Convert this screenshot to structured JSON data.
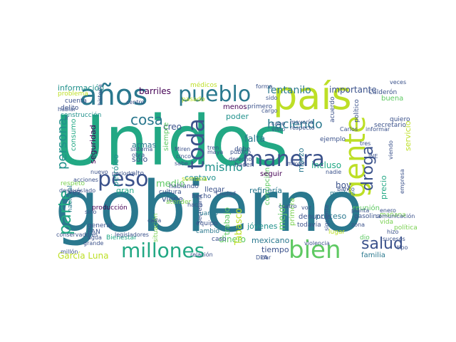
{
  "palette": [
    "#440154",
    "#3b528b",
    "#2a788e",
    "#21918c",
    "#22a884",
    "#5ec962",
    "#7ad151",
    "#bddf26",
    "#fde725"
  ],
  "words": [
    {
      "text": "Unidos",
      "c": 4
    },
    {
      "text": "gobierno",
      "c": 2
    },
    {
      "text": "país",
      "c": 7
    },
    {
      "text": "años",
      "c": 2
    },
    {
      "text": "pueblo",
      "c": 2
    },
    {
      "text": "gente",
      "c": 7
    },
    {
      "text": "bien",
      "c": 5
    },
    {
      "text": "millones",
      "c": 4
    },
    {
      "text": "manera",
      "c": 1
    },
    {
      "text": "peso",
      "c": 1
    },
    {
      "text": "toda",
      "c": 1
    },
    {
      "text": "cosa",
      "c": 2
    },
    {
      "text": "droga",
      "c": 1
    },
    {
      "text": "salud",
      "c": 1
    },
    {
      "text": "parte",
      "c": 4
    },
    {
      "text": "persona",
      "c": 3
    },
    {
      "text": "haciendo",
      "c": 2
    },
    {
      "text": "mismo",
      "c": 3
    },
    {
      "text": "fentanilo",
      "c": 2
    },
    {
      "text": "importante",
      "c": 1
    },
    {
      "text": "información",
      "c": 3
    },
    {
      "text": "barriles",
      "c": 0
    },
    {
      "text": "creo",
      "c": 1
    },
    {
      "text": "falta",
      "c": 2
    },
    {
      "text": "poder",
      "c": 3
    },
    {
      "text": "incluso",
      "c": 4
    },
    {
      "text": "hoy",
      "c": 1
    },
    {
      "text": "mejor",
      "c": 5
    },
    {
      "text": "dinero",
      "c": 5
    },
    {
      "text": "tiempo",
      "c": 1
    },
    {
      "text": "García Luna",
      "c": 7
    },
    {
      "text": "refinería",
      "c": 2
    },
    {
      "text": "centavo",
      "c": 3
    },
    {
      "text": "medio",
      "c": 5
    },
    {
      "text": "viene",
      "c": 1
    },
    {
      "text": "trabajo",
      "c": 5
    },
    {
      "text": "Tabasco",
      "c": 7
    },
    {
      "text": "mexicano",
      "c": 2
    },
    {
      "text": "proceso",
      "c": 2
    },
    {
      "text": "precio",
      "c": 4
    },
    {
      "text": "servicio",
      "c": 7
    },
    {
      "text": "buena",
      "c": 5
    },
    {
      "text": "corrupción",
      "c": 5
    },
    {
      "text": "marzo",
      "c": 2
    },
    {
      "text": "jóvenes",
      "c": 3
    },
    {
      "text": "familia",
      "c": 2
    },
    {
      "text": "seguridad",
      "c": 0
    },
    {
      "text": "consumo",
      "c": 4
    },
    {
      "text": "petróleo",
      "c": 3
    },
    {
      "text": "gran",
      "c": 4
    },
    {
      "text": "vez",
      "c": 1
    },
    {
      "text": "sólo",
      "c": 1
    },
    {
      "text": "armas",
      "c": 2
    },
    {
      "text": "siempre",
      "c": 5
    },
    {
      "text": "producción",
      "c": 0
    },
    {
      "text": "menos",
      "c": 0
    },
    {
      "text": "primero",
      "c": 1
    },
    {
      "text": "reunión",
      "c": 5
    },
    {
      "text": "seguir",
      "c": 0
    },
    {
      "text": "hecho",
      "c": 1
    },
    {
      "text": "cuanto",
      "c": 2
    },
    {
      "text": "equipo",
      "c": 1
    },
    {
      "text": "cambio",
      "c": 2
    },
    {
      "text": "llegar",
      "c": 1
    },
    {
      "text": "primera",
      "c": 6
    },
    {
      "text": "denuncia",
      "c": 1
    },
    {
      "text": "muchas",
      "c": 2
    },
    {
      "text": "todavía",
      "c": 1
    },
    {
      "text": "lugar",
      "c": 7
    },
    {
      "text": "gasolina",
      "c": 1
    },
    {
      "text": "respeto",
      "c": 6
    },
    {
      "text": "construcción",
      "c": 3
    },
    {
      "text": "problema",
      "c": 7
    },
    {
      "text": "cuenta",
      "c": 1
    },
    {
      "text": "delito",
      "c": 1
    },
    {
      "text": "nacional",
      "c": 2
    },
    {
      "text": "alto",
      "c": 1
    },
    {
      "text": "Bienestar",
      "c": 4
    },
    {
      "text": "general",
      "c": 1
    },
    {
      "text": "PAN",
      "c": 1
    },
    {
      "text": "cultura",
      "c": 1
    },
    {
      "text": "quiero",
      "c": 1
    },
    {
      "text": "Calderón",
      "c": 1
    },
    {
      "text": "político",
      "c": 1
    },
    {
      "text": "acuerdo",
      "c": 1
    },
    {
      "text": "ejemplo",
      "c": 1
    },
    {
      "text": "secretario",
      "c": 1
    },
    {
      "text": "mañana",
      "c": 6
    },
    {
      "text": "vida",
      "c": 6
    },
    {
      "text": "política",
      "c": 6
    },
    {
      "text": "caso",
      "c": 1
    },
    {
      "text": "dio",
      "c": 5
    },
    {
      "text": "hablando",
      "c": 1
    },
    {
      "text": "atender",
      "c": 6
    },
    {
      "text": "situación",
      "c": 6
    },
    {
      "text": "médicos",
      "c": 7
    },
    {
      "text": "pasado",
      "c": 7
    },
    {
      "text": "semana",
      "c": 7
    },
    {
      "text": "hacen",
      "c": 1
    },
    {
      "text": "debe",
      "c": 1
    },
    {
      "text": "derecho",
      "c": 1
    },
    {
      "text": "Ciudad",
      "c": 1
    },
    {
      "text": "cuatro",
      "c": 1
    },
    {
      "text": "zona",
      "c": 1
    },
    {
      "text": "planta",
      "c": 1
    },
    {
      "text": "Banco",
      "c": 1
    },
    {
      "text": "voz",
      "c": 1
    },
    {
      "text": "cabo",
      "c": 1
    },
    {
      "text": "visto",
      "c": 1
    },
    {
      "text": "sino",
      "c": 1
    },
    {
      "text": "agua",
      "c": 1
    },
    {
      "text": "grande",
      "c": 1
    },
    {
      "text": "millón",
      "c": 1
    },
    {
      "text": "acciones",
      "c": 1
    },
    {
      "text": "después",
      "c": 1
    },
    {
      "text": "periodo",
      "c": 1
    },
    {
      "text": "sistema",
      "c": 1
    },
    {
      "text": "obra",
      "c": 1
    },
    {
      "text": "Miren",
      "c": 1
    },
    {
      "text": "maya",
      "c": 1
    },
    {
      "text": "tren",
      "c": 1
    },
    {
      "text": "cinco",
      "c": 1
    },
    {
      "text": "sabe",
      "c": 1
    },
    {
      "text": "público",
      "c": 1
    },
    {
      "text": "DEA",
      "c": 1
    },
    {
      "text": "nadie",
      "c": 1
    },
    {
      "text": "INE",
      "c": 1
    },
    {
      "text": "Carlos",
      "c": 1
    },
    {
      "text": "sido",
      "c": 1
    },
    {
      "text": "forma",
      "c": 1
    },
    {
      "text": "veces",
      "c": 1
    },
    {
      "text": "tipo",
      "c": 1
    },
    {
      "text": "enero",
      "c": 1
    },
    {
      "text": "lado",
      "c": 1
    },
    {
      "text": "legisladores",
      "c": 1
    },
    {
      "text": "conservadores",
      "c": 1
    },
    {
      "text": "historia",
      "c": 1
    },
    {
      "text": "cargo",
      "c": 1
    },
    {
      "text": "Secretaría",
      "c": 1
    },
    {
      "text": "mayoría",
      "c": 1
    },
    {
      "text": "respecto",
      "c": 1
    },
    {
      "text": "siguiente",
      "c": 1
    },
    {
      "text": "informar",
      "c": 1
    },
    {
      "text": "viendo",
      "c": 1
    },
    {
      "text": "cada",
      "c": 1
    },
    {
      "text": "sucesos",
      "c": 1
    },
    {
      "text": "violencia",
      "c": 1
    },
    {
      "text": "comunicación",
      "c": 1
    },
    {
      "text": "hizo",
      "c": 1
    },
    {
      "text": "empresa",
      "c": 1
    },
    {
      "text": "relación",
      "c": 1
    },
    {
      "text": "nuevo",
      "c": 1
    },
    {
      "text": "centro",
      "c": 1
    },
    {
      "text": "hacia",
      "c": 1
    },
    {
      "text": "dar",
      "c": 1
    },
    {
      "text": "mayor",
      "c": 1
    },
    {
      "text": "hablar",
      "c": 1
    },
    {
      "text": "ir",
      "c": 1
    },
    {
      "text": "tres",
      "c": 1
    }
  ]
}
